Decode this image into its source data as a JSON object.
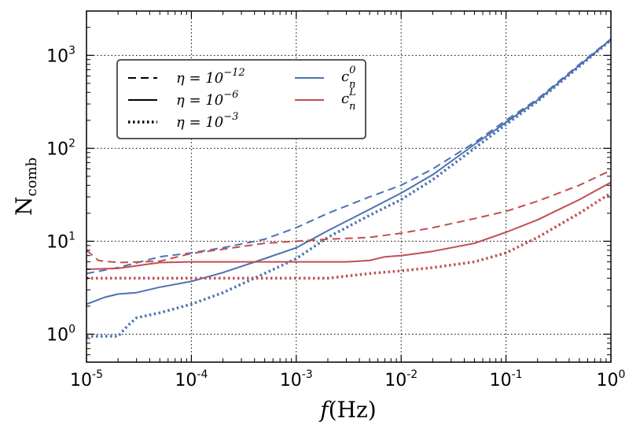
{
  "chart_data": {
    "type": "line",
    "title": "",
    "xlabel": {
      "main": "f",
      "unit": "(Hz)"
    },
    "ylabel": {
      "main": "N",
      "sub": "comb"
    },
    "xscale": "log",
    "yscale": "log",
    "xlim": [
      1e-05,
      1
    ],
    "ylim": [
      0.5,
      3000
    ],
    "grid": true,
    "grid_style": "dotted",
    "legend_placement": "upper-left",
    "x_ticks": [
      {
        "value": 1e-05,
        "base": "10",
        "exp": "-5"
      },
      {
        "value": 0.0001,
        "base": "10",
        "exp": "-4"
      },
      {
        "value": 0.001,
        "base": "10",
        "exp": "-3"
      },
      {
        "value": 0.01,
        "base": "10",
        "exp": "-2"
      },
      {
        "value": 0.1,
        "base": "10",
        "exp": "-1"
      },
      {
        "value": 1,
        "base": "10",
        "exp": "0"
      }
    ],
    "y_ticks": [
      {
        "value": 1,
        "base": "10",
        "exp": "0"
      },
      {
        "value": 10,
        "base": "10",
        "exp": "1"
      },
      {
        "value": 100,
        "base": "10",
        "exp": "2"
      },
      {
        "value": 1000,
        "base": "10",
        "exp": "3"
      }
    ],
    "legend": {
      "linestyles": [
        {
          "style": "dashed",
          "label_main": "η = 10",
          "label_exp": "−12"
        },
        {
          "style": "solid",
          "label_main": "η = 10",
          "label_exp": "−6"
        },
        {
          "style": "dotted",
          "label_main": "η = 10",
          "label_exp": "−3"
        }
      ],
      "colors": [
        {
          "color": "#4c72b0",
          "label_main": "c",
          "label_sup": "0",
          "label_sub": "n"
        },
        {
          "color": "#c44e52",
          "label_main": "c",
          "label_sup": "L",
          "label_sub": "n"
        }
      ]
    },
    "colors": {
      "blue": "#4c72b0",
      "red": "#c44e52"
    },
    "series": [
      {
        "id": "c0-eta-1e-12",
        "color": "blue",
        "style": "dashed",
        "points": [
          [
            1e-05,
            4.5
          ],
          [
            2e-05,
            5.2
          ],
          [
            5e-05,
            6.8
          ],
          [
            0.0001,
            7.5
          ],
          [
            0.0002,
            8.5
          ],
          [
            0.0005,
            10.5
          ],
          [
            0.001,
            14
          ],
          [
            0.002,
            20
          ],
          [
            0.005,
            30
          ],
          [
            0.01,
            40
          ],
          [
            0.02,
            60
          ],
          [
            0.05,
            115
          ],
          [
            0.1,
            200
          ],
          [
            0.2,
            340
          ],
          [
            0.5,
            800
          ],
          [
            1,
            1500
          ]
        ]
      },
      {
        "id": "c0-eta-1e-6",
        "color": "blue",
        "style": "solid",
        "points": [
          [
            1e-05,
            2.1
          ],
          [
            1.5e-05,
            2.5
          ],
          [
            2e-05,
            2.7
          ],
          [
            3e-05,
            2.8
          ],
          [
            5e-05,
            3.2
          ],
          [
            0.0001,
            3.7
          ],
          [
            0.0002,
            4.6
          ],
          [
            0.0005,
            6.5
          ],
          [
            0.001,
            8.5
          ],
          [
            0.002,
            13
          ],
          [
            0.005,
            22
          ],
          [
            0.01,
            33
          ],
          [
            0.02,
            52
          ],
          [
            0.05,
            110
          ],
          [
            0.1,
            190
          ],
          [
            0.2,
            330
          ],
          [
            0.5,
            780
          ],
          [
            1,
            1480
          ]
        ]
      },
      {
        "id": "c0-eta-1e-3",
        "color": "blue",
        "style": "dotted",
        "points": [
          [
            1e-05,
            0.95
          ],
          [
            1.5e-05,
            0.95
          ],
          [
            2e-05,
            0.95
          ],
          [
            2.5e-05,
            1.25
          ],
          [
            3e-05,
            1.5
          ],
          [
            5e-05,
            1.7
          ],
          [
            0.0001,
            2.1
          ],
          [
            0.0002,
            2.8
          ],
          [
            0.0005,
            4.5
          ],
          [
            0.001,
            6.5
          ],
          [
            0.002,
            11
          ],
          [
            0.005,
            19
          ],
          [
            0.01,
            28
          ],
          [
            0.02,
            46
          ],
          [
            0.05,
            100
          ],
          [
            0.1,
            180
          ],
          [
            0.2,
            320
          ],
          [
            0.5,
            760
          ],
          [
            1,
            1460
          ]
        ]
      },
      {
        "id": "cL-eta-1e-12",
        "color": "red",
        "style": "dashed",
        "points": [
          [
            1e-05,
            8
          ],
          [
            1.3e-05,
            6.2
          ],
          [
            2e-05,
            5.9
          ],
          [
            5e-05,
            6.1
          ],
          [
            0.0001,
            7.4
          ],
          [
            0.0002,
            8.2
          ],
          [
            0.0005,
            9.5
          ],
          [
            0.001,
            10
          ],
          [
            0.002,
            10.5
          ],
          [
            0.005,
            11
          ],
          [
            0.01,
            12.2
          ],
          [
            0.02,
            14
          ],
          [
            0.05,
            17.5
          ],
          [
            0.1,
            21
          ],
          [
            0.2,
            27
          ],
          [
            0.5,
            40
          ],
          [
            1,
            58
          ]
        ]
      },
      {
        "id": "cL-eta-1e-6",
        "color": "red",
        "style": "solid",
        "points": [
          [
            1e-05,
            5
          ],
          [
            2e-05,
            5.1
          ],
          [
            5e-05,
            5.9
          ],
          [
            0.0001,
            6
          ],
          [
            0.0005,
            6
          ],
          [
            0.001,
            6
          ],
          [
            0.003,
            6
          ],
          [
            0.005,
            6.2
          ],
          [
            0.007,
            6.8
          ],
          [
            0.01,
            7
          ],
          [
            0.02,
            7.8
          ],
          [
            0.05,
            9.5
          ],
          [
            0.1,
            12.5
          ],
          [
            0.2,
            17
          ],
          [
            0.5,
            28
          ],
          [
            1,
            43
          ]
        ]
      },
      {
        "id": "cL-eta-1e-3",
        "color": "red",
        "style": "dotted",
        "points": [
          [
            1e-05,
            4
          ],
          [
            0.0001,
            4
          ],
          [
            0.0005,
            4
          ],
          [
            0.001,
            4
          ],
          [
            0.002,
            4
          ],
          [
            0.005,
            4.5
          ],
          [
            0.01,
            4.8
          ],
          [
            0.02,
            5.2
          ],
          [
            0.05,
            6
          ],
          [
            0.1,
            7.5
          ],
          [
            0.2,
            11
          ],
          [
            0.5,
            20
          ],
          [
            1,
            33
          ]
        ]
      }
    ]
  }
}
